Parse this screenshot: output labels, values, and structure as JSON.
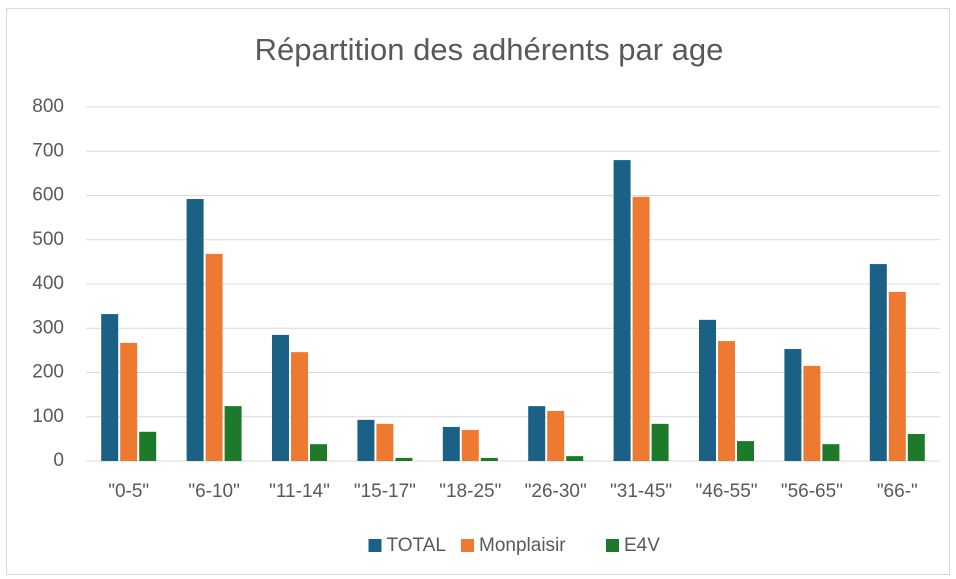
{
  "chart_data": {
    "type": "bar",
    "title": "Répartition des adhérents par age",
    "categories": [
      "\"0-5\"",
      "\"6-10\"",
      "\"11-14\"",
      "\"15-17\"",
      "\"18-25\"",
      "\"26-30\"",
      "\"31-45\"",
      "\"46-55\"",
      "\"56-65\"",
      "\"66-\""
    ],
    "series": [
      {
        "name": "TOTAL",
        "color": "#1b6085",
        "values": [
          332,
          592,
          285,
          93,
          77,
          124,
          680,
          319,
          253,
          445
        ]
      },
      {
        "name": "Monplaisir",
        "color": "#ee7a32",
        "values": [
          267,
          468,
          246,
          84,
          70,
          113,
          597,
          271,
          215,
          382
        ]
      },
      {
        "name": "E4V",
        "color": "#1e7a2b",
        "values": [
          66,
          124,
          38,
          7,
          7,
          11,
          84,
          45,
          38,
          61
        ]
      }
    ],
    "ylim": [
      0,
      800
    ],
    "yticks": [
      0,
      100,
      200,
      300,
      400,
      500,
      600,
      700,
      800
    ],
    "grid": true,
    "legend": "bottom"
  }
}
